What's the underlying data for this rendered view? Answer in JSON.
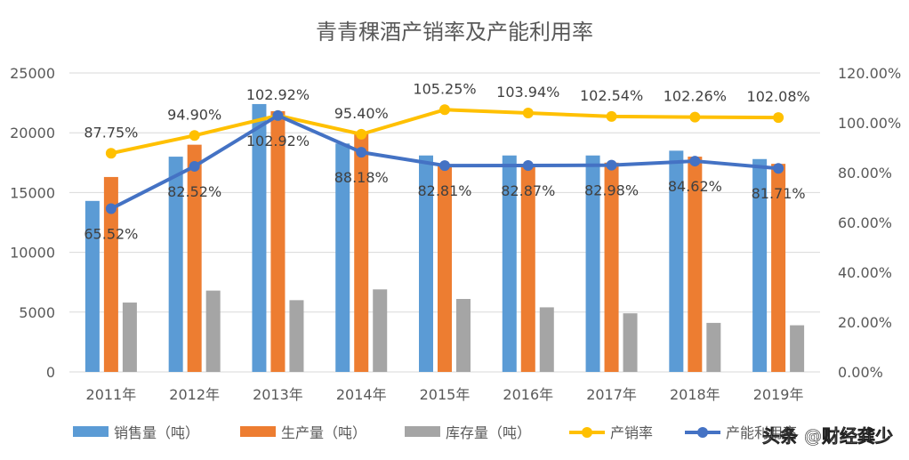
{
  "chart_data": {
    "type": "bar-line-combo",
    "title": "青青稞酒产销率及产能利用率",
    "categories": [
      "2011年",
      "2012年",
      "2013年",
      "2014年",
      "2015年",
      "2016年",
      "2017年",
      "2018年",
      "2019年"
    ],
    "left_axis": {
      "min": 0,
      "max": 25000,
      "ticks": [
        "0",
        "5000",
        "10000",
        "15000",
        "20000",
        "25000"
      ]
    },
    "right_axis": {
      "min": 0,
      "max": 120,
      "ticks": [
        "0.00%",
        "20.00%",
        "40.00%",
        "60.00%",
        "80.00%",
        "100.00%",
        "120.00%"
      ]
    },
    "grid": true,
    "legend_position": "bottom",
    "series": [
      {
        "name": "销售量（吨）",
        "kind": "bar",
        "axis": "left",
        "color": "#5b9bd5",
        "values": [
          14300,
          18000,
          22400,
          19100,
          18100,
          18100,
          18100,
          18500,
          17800
        ]
      },
      {
        "name": "生产量（吨）",
        "kind": "bar",
        "axis": "left",
        "color": "#ed7d31",
        "values": [
          16300,
          19000,
          21800,
          20000,
          17200,
          17300,
          17500,
          18000,
          17400
        ]
      },
      {
        "name": "库存量（吨）",
        "kind": "bar",
        "axis": "left",
        "color": "#a5a5a5",
        "values": [
          5800,
          6800,
          6000,
          6900,
          6100,
          5400,
          4900,
          4100,
          3900
        ]
      },
      {
        "name": "产销率",
        "kind": "line",
        "axis": "right",
        "color": "#ffc000",
        "values": [
          87.75,
          94.9,
          102.92,
          95.4,
          105.25,
          103.94,
          102.54,
          102.26,
          102.08
        ],
        "labels": [
          "87.75%",
          "94.90%",
          "102.92%",
          "95.40%",
          "105.25%",
          "103.94%",
          "102.54%",
          "102.26%",
          "102.08%"
        ]
      },
      {
        "name": "产能利用率",
        "kind": "line",
        "axis": "right",
        "color": "#4472c4",
        "values": [
          65.52,
          82.52,
          102.92,
          88.18,
          82.81,
          82.87,
          82.98,
          84.62,
          81.71
        ],
        "labels": [
          "65.52%",
          "82.52%",
          "102.92%",
          "88.18%",
          "82.81%",
          "82.87%",
          "82.98%",
          "84.62%",
          "81.71%"
        ]
      }
    ]
  },
  "watermark": {
    "text": "头条 @财经龚少"
  }
}
